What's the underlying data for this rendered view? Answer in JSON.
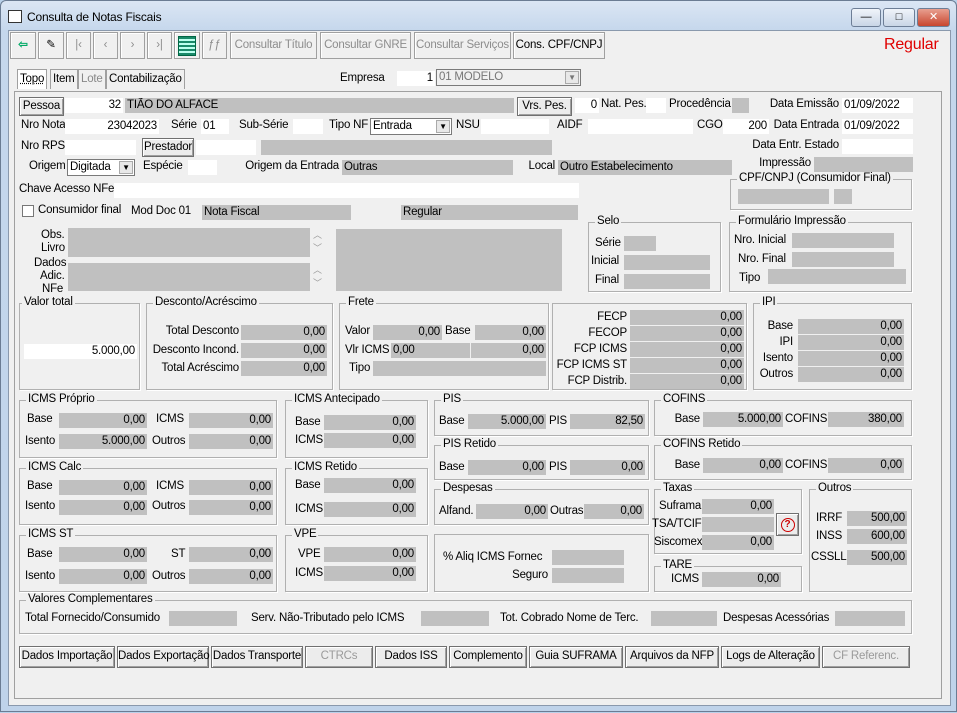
{
  "window": {
    "title": "Consulta de Notas Fiscais",
    "minimize": "—",
    "maximize": "□",
    "close": "✕"
  },
  "toolbar": {
    "icons": [
      "exit-icon",
      "eraser-icon",
      "first-record-icon",
      "previous-record-icon",
      "next-record-icon",
      "last-record-icon",
      "grid-icon",
      "disabled-icon"
    ],
    "consultar_titulo": "Consultar Título",
    "consultar_gnre": "Consultar GNRE",
    "consultar_servicos": "Consultar Serviços",
    "cons_cpf_cnpj": "Cons. CPF/CNPJ",
    "status": "Regular",
    "status_color": "#e00000"
  },
  "tabs": [
    "Topo",
    "Item",
    "Lote",
    "Contabilização"
  ],
  "empresa": {
    "label": "Empresa",
    "code": "1",
    "name": "01 MODELO"
  },
  "header": {
    "pessoa_btn": "Pessoa",
    "pessoa_code": "32",
    "pessoa_name": "TIÃO DO ALFACE",
    "vrs_pes_btn": "Vrs. Pes.",
    "nat_pes_value": "0",
    "nat_pes": "Nat. Pes.",
    "procedencia": "Procedência",
    "data_emissao": "Data Emissão",
    "data_emissao_value": "01/09/2022",
    "nro_nota": "Nro Nota",
    "nro_nota_value": "23042023",
    "serie": "Série",
    "serie_value": "01",
    "sub_serie": "Sub-Série",
    "tipo_nf": "Tipo NF",
    "tipo_nf_value": "Entrada",
    "nsu": "NSU",
    "aidf": "AIDF",
    "cgo": "CGO",
    "cgo_value": "200",
    "data_entrada": "Data Entrada",
    "data_entrada_value": "01/09/2022",
    "nro_rps": "Nro RPS",
    "prestador_btn": "Prestador",
    "data_entr_estado": "Data Entr. Estado",
    "origem": "Origem",
    "origem_value": "Digitada",
    "especie": "Espécie",
    "origem_entrada": "Origem da Entrada",
    "origem_entrada_value": "Outras",
    "local": "Local",
    "local_value": "Outro Estabelecimento",
    "impressao": "Impressão",
    "chave": "Chave Acesso NFe",
    "cpf_group": "CPF/CNPJ (Consumidor Final)",
    "consumidor_final": "Consumidor final",
    "mod_doc": "Mod Doc 01",
    "mod_doc_value": "Nota Fiscal",
    "regime": "Regular",
    "obs": "Obs.",
    "livro": "Livro",
    "dados": "Dados",
    "adic": "Adic.",
    "nfe": "NFe"
  },
  "selo": {
    "title": "Selo",
    "serie": "Série",
    "inicial": "Inicial",
    "final": "Final"
  },
  "formulario": {
    "title": "Formulário Impressão",
    "nro_inicial": "Nro. Inicial",
    "nro_final": "Nro. Final",
    "tipo": "Tipo"
  },
  "valor_total": {
    "title": "Valor total",
    "value": "5.000,00"
  },
  "desconto": {
    "title": "Desconto/Acréscimo",
    "total_desconto": "Total Desconto",
    "total_desconto_v": "0,00",
    "desconto_incond": "Desconto Incond.",
    "desconto_incond_v": "0,00",
    "total_acrescimo": "Total Acréscimo",
    "total_acrescimo_v": "0,00"
  },
  "frete": {
    "title": "Frete",
    "valor": "Valor",
    "valor_v": "0,00",
    "base": "Base",
    "base_v": "0,00",
    "vlr_icms": "Vlr ICMS",
    "vlr_icms_v": "0,00",
    "vlr_icms_v2": "0,00",
    "tipo": "Tipo"
  },
  "fcp": {
    "fecp": "FECP",
    "fecp_v": "0,00",
    "fecop": "FECOP",
    "fecop_v": "0,00",
    "fcp_icms": "FCP ICMS",
    "fcp_icms_v": "0,00",
    "fcp_icms_st": "FCP ICMS ST",
    "fcp_icms_st_v": "0,00",
    "fcp_distrib": "FCP Distrib.",
    "fcp_distrib_v": "0,00"
  },
  "ipi": {
    "title": "IPI",
    "base": "Base",
    "base_v": "0,00",
    "ipi": "IPI",
    "ipi_v": "0,00",
    "isento": "Isento",
    "isento_v": "0,00",
    "outros": "Outros",
    "outros_v": "0,00"
  },
  "icms_proprio": {
    "title": "ICMS Próprio",
    "base": "Base",
    "base_v": "0,00",
    "icms": "ICMS",
    "icms_v": "0,00",
    "isento": "Isento",
    "isento_v": "5.000,00",
    "outros": "Outros",
    "outros_v": "0,00"
  },
  "icms_antecipado": {
    "title": "ICMS Antecipado",
    "base": "Base",
    "base_v": "0,00",
    "icms": "ICMS",
    "icms_v": "0,00"
  },
  "pis": {
    "title": "PIS",
    "base": "Base",
    "base_v": "5.000,00",
    "pis": "PIS",
    "pis_v": "82,50"
  },
  "cofins": {
    "title": "COFINS",
    "base": "Base",
    "base_v": "5.000,00",
    "cofins": "COFINS",
    "cofins_v": "380,00"
  },
  "pis_retido": {
    "title": "PIS Retido",
    "base": "Base",
    "base_v": "0,00",
    "pis": "PIS",
    "pis_v": "0,00"
  },
  "cofins_retido": {
    "title": "COFINS Retido",
    "base": "Base",
    "base_v": "0,00",
    "cofins": "COFINS",
    "cofins_v": "0,00"
  },
  "icms_calc": {
    "title": "ICMS Calc",
    "base": "Base",
    "base_v": "0,00",
    "icms": "ICMS",
    "icms_v": "0,00",
    "isento": "Isento",
    "isento_v": "0,00",
    "outros": "Outros",
    "outros_v": "0,00"
  },
  "icms_retido": {
    "title": "ICMS Retido",
    "base": "Base",
    "base_v": "0,00",
    "icms": "ICMS",
    "icms_v": "0,00"
  },
  "despesas": {
    "title": "Despesas",
    "alfand": "Alfand.",
    "alfand_v": "0,00",
    "outras": "Outras",
    "outras_v": "0,00"
  },
  "taxas": {
    "title": "Taxas",
    "suframa": "Suframa",
    "suframa_v": "0,00",
    "tsa": "TSA/TCIF",
    "siscomex": "Siscomex",
    "siscomex_v": "0,00",
    "help": "?"
  },
  "outros": {
    "title": "Outros",
    "irrf": "IRRF",
    "irrf_v": "500,00",
    "inss": "INSS",
    "inss_v": "600,00",
    "cssll": "CSSLL",
    "cssll_v": "500,00"
  },
  "icms_st": {
    "title": "ICMS ST",
    "base": "Base",
    "base_v": "0,00",
    "st": "ST",
    "st_v": "0,00",
    "isento": "Isento",
    "isento_v": "0,00",
    "outros": "Outros",
    "outros_v": "0,00"
  },
  "vpe": {
    "title": "VPE",
    "vpe": "VPE",
    "vpe_v": "0,00",
    "icms": "ICMS",
    "icms_v": "0,00"
  },
  "aliq": {
    "aliq": "% Aliq ICMS Fornec",
    "seguro": "Seguro"
  },
  "tare": {
    "title": "TARE",
    "icms": "ICMS",
    "icms_v": "0,00"
  },
  "complementares": {
    "title": "Valores Complementares",
    "total_fornecido": "Total Fornecido/Consumido",
    "serv_nao_trib": "Serv. Não-Tributado pelo ICMS",
    "tot_cobrado": "Tot. Cobrado Nome de Terc.",
    "despesas_acessorias": "Despesas Acessórias"
  },
  "bottom_buttons": [
    "Dados Importação",
    "Dados Exportação",
    "Dados Transporte",
    "CTRCs",
    "Dados ISS",
    "Complemento",
    "Guia SUFRAMA",
    "Arquivos da NFP",
    "Logs de Alteração",
    "CF Referenc."
  ]
}
